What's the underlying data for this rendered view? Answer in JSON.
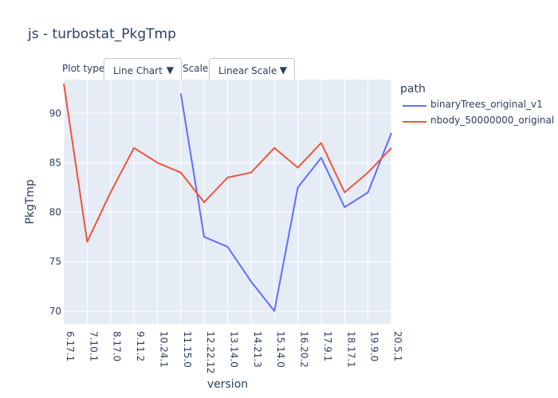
{
  "title": "js - turbostat_PkgTmp",
  "controls": {
    "plot_type_label": "Plot type:",
    "plot_type_value": "Line Chart",
    "scale_label": "Scale:",
    "scale_value": "Linear Scale",
    "arrow_icon": "triangle-down-icon"
  },
  "legend": {
    "title": "path"
  },
  "colors": {
    "plot_bg": "#e5ecf6",
    "grid": "#ffffff",
    "text": "#2a3f5f"
  },
  "chart_data": {
    "type": "line",
    "title": "js - turbostat_PkgTmp",
    "xlabel": "version",
    "ylabel": "PkgTmp",
    "categories": [
      "6.17.1",
      "7.10.1",
      "8.17.0",
      "9.11.2",
      "10.24.1",
      "11.15.0",
      "12.22.12",
      "13.14.0",
      "14.21.3",
      "15.14.0",
      "16.20.2",
      "17.9.1",
      "18.17.1",
      "19.9.0",
      "20.5.1"
    ],
    "yticks": [
      70,
      75,
      80,
      85,
      90
    ],
    "ylim": [
      68.7,
      93.4
    ],
    "grid": true,
    "legend_position": "top-right",
    "series": [
      {
        "name": "binaryTrees_original_v1",
        "color": "#636efa",
        "values": [
          null,
          null,
          null,
          null,
          null,
          92,
          77.5,
          76.5,
          73,
          70,
          82.5,
          85.5,
          80.5,
          82,
          88
        ]
      },
      {
        "name": "nbody_50000000_original",
        "color": "#ef553b",
        "values": [
          93,
          77,
          82,
          86.5,
          85,
          84,
          81,
          83.5,
          84,
          86.5,
          84.5,
          87,
          82,
          84,
          86.5
        ]
      }
    ]
  }
}
